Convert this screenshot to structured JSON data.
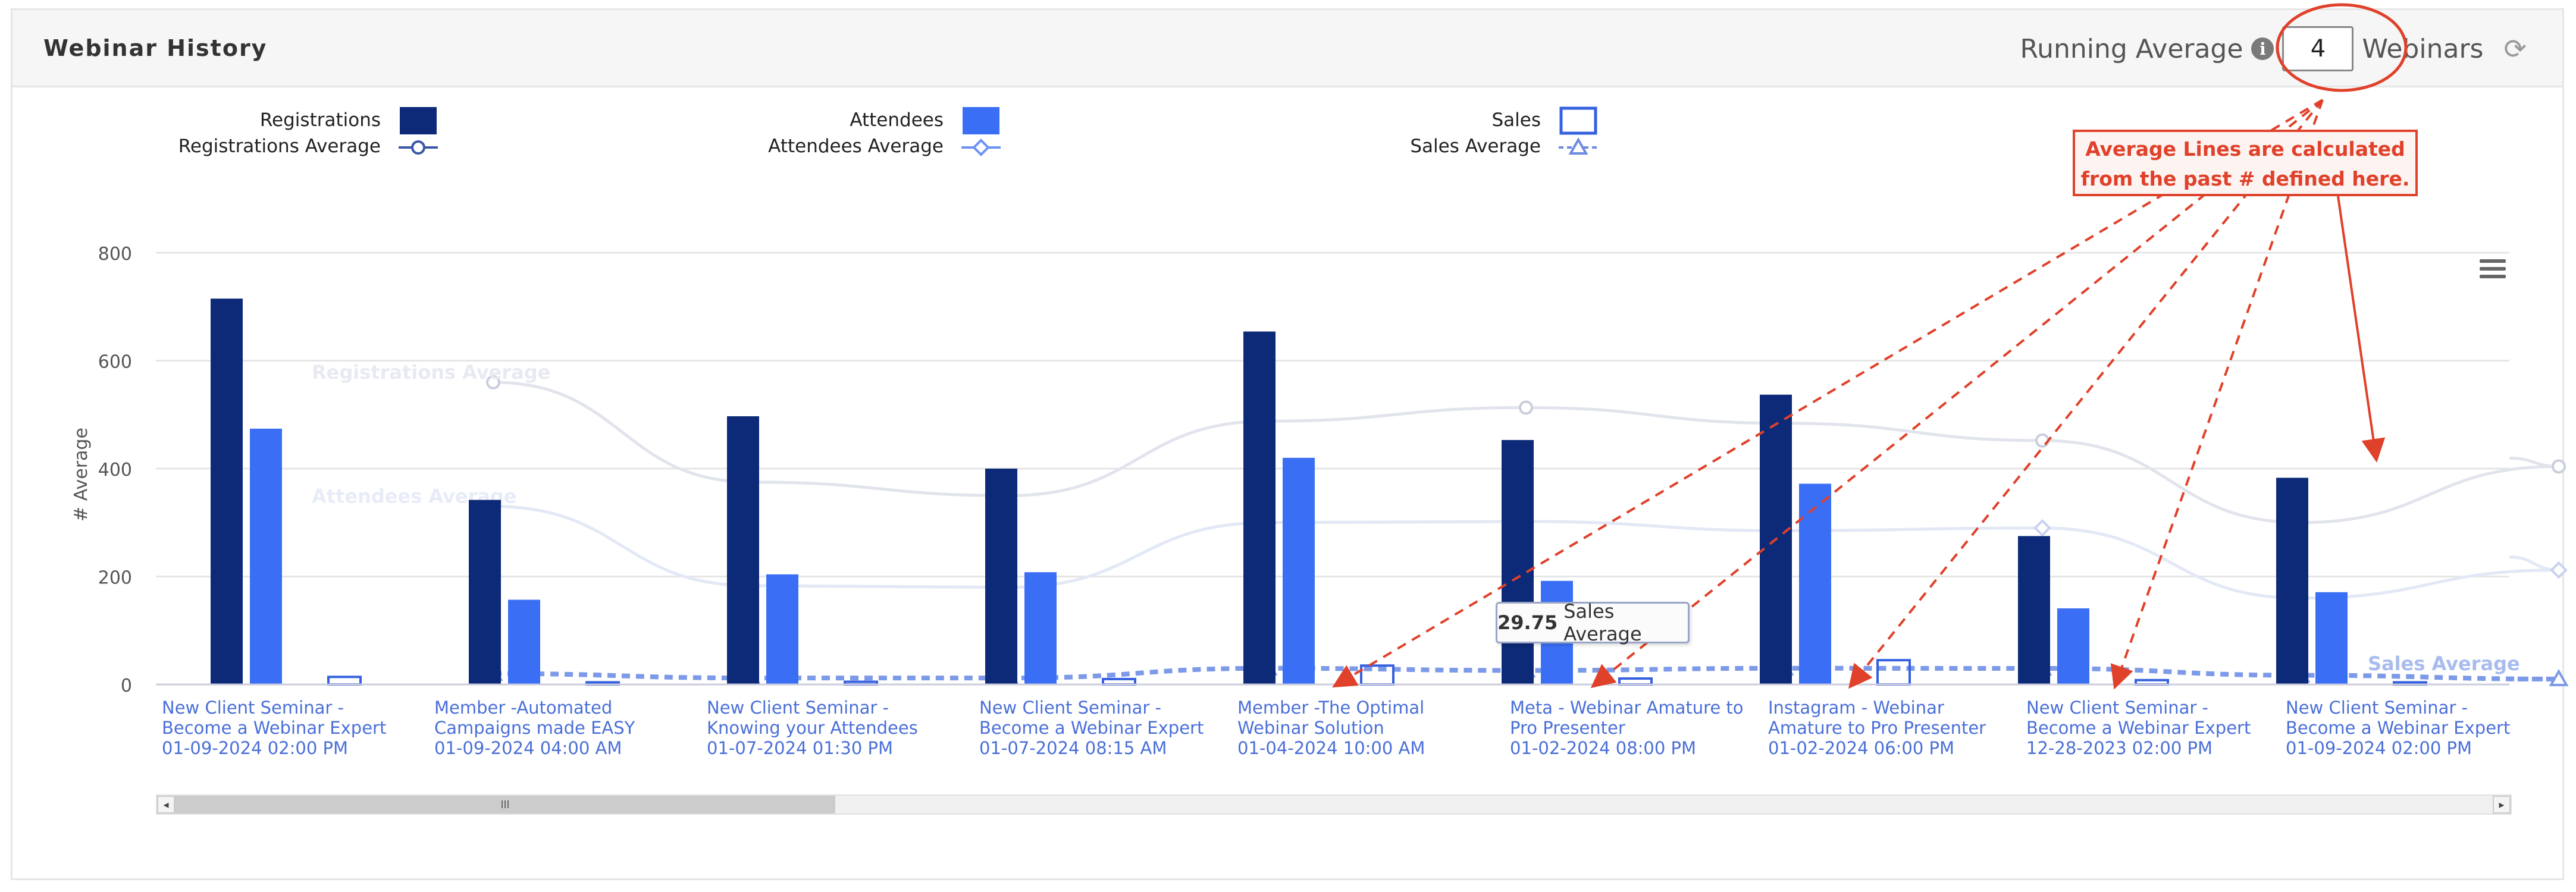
{
  "header": {
    "title": "Webinar History",
    "running_label": "Running Average",
    "running_value": "4",
    "webinars_label": "Webinars",
    "info_icon": "info-icon",
    "refresh_icon": "refresh-icon"
  },
  "annotation": {
    "callout_line1": "Average Lines are calculated",
    "callout_line2": "from the past # defined here."
  },
  "tooltip": {
    "value": "29.75",
    "label": "Sales Average"
  },
  "colors": {
    "registrations": "#0d2a78",
    "attendees": "#3a6ff5",
    "sales": "#3560e0",
    "avg_light": "#d6dbe8",
    "annotation": "#e0412a"
  },
  "chart_data": {
    "type": "bar",
    "ylabel": "# Average",
    "xlabel": "",
    "ylim": [
      0,
      800
    ],
    "yticks": [
      0,
      200,
      400,
      600,
      800
    ],
    "legend_position": "top",
    "categories": [
      [
        "New Client Seminar -",
        "Become a Webinar Expert",
        "01-09-2024 02:00 PM"
      ],
      [
        "Member -Automated",
        "Campaigns made EASY",
        "01-09-2024 04:00 AM"
      ],
      [
        "New Client Seminar -",
        "Knowing your Attendees",
        "01-07-2024 01:30 PM"
      ],
      [
        "New Client Seminar -",
        "Become a Webinar Expert",
        "01-07-2024 08:15 AM"
      ],
      [
        "Member -The Optimal",
        "Webinar Solution",
        "01-04-2024 10:00 AM"
      ],
      [
        "Meta - Webinar Amature to",
        "Pro Presenter",
        "01-02-2024 08:00 PM"
      ],
      [
        "Instagram - Webinar",
        "Amature to Pro Presenter",
        "01-02-2024 06:00 PM"
      ],
      [
        "New Client Seminar -",
        "Become a Webinar Expert",
        "12-28-2023 02:00 PM"
      ],
      [
        "New Client Seminar -",
        "Become a Webinar Expert",
        "01-09-2024 02:00 PM"
      ]
    ],
    "series": [
      {
        "name": "Registrations",
        "kind": "bar",
        "values": [
          715,
          342,
          497,
          400,
          654,
          453,
          537,
          275,
          383
        ]
      },
      {
        "name": "Attendees",
        "kind": "bar",
        "values": [
          474,
          157,
          204,
          208,
          420,
          192,
          372,
          141,
          171
        ]
      },
      {
        "name": "Sales",
        "kind": "bar-outline",
        "values": [
          14,
          4,
          5,
          10,
          35,
          11,
          45,
          8,
          4
        ]
      },
      {
        "name": "Registrations Average",
        "kind": "line",
        "values": [
          560,
          375,
          350,
          488,
          513,
          484,
          452,
          300,
          404
        ]
      },
      {
        "name": "Attendees Average",
        "kind": "line",
        "values": [
          330,
          183,
          180,
          300,
          302,
          285,
          290,
          160,
          212
        ]
      },
      {
        "name": "Sales Average",
        "kind": "line",
        "values": [
          20,
          12,
          12,
          30,
          26,
          30,
          29.75,
          17,
          10
        ]
      }
    ],
    "inline_labels": [
      "Registrations Average",
      "Attendees Average",
      "Sales Average"
    ]
  }
}
